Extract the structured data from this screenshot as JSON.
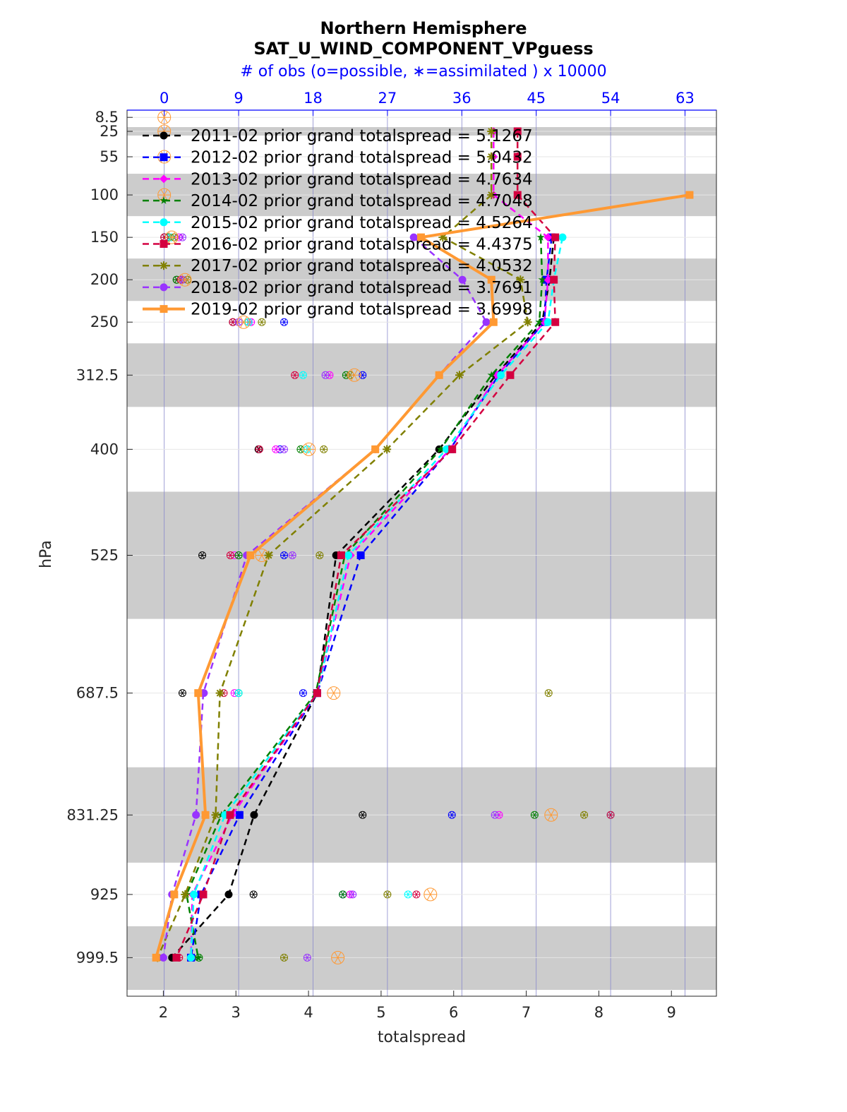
{
  "chart_data": {
    "type": "line",
    "title": "Northern Hemisphere",
    "subtitle": "SAT_U_WIND_COMPONENT_VPguess",
    "top_axis_label": "# of obs (o=possible, ∗=assimilated ) x 10000",
    "xlabel": "totalspread",
    "ylabel": "hPa",
    "xlim": [
      1.5,
      9.62
    ],
    "x_ticks": [
      2,
      3,
      4,
      5,
      6,
      7,
      8,
      9
    ],
    "top_ticks": [
      0,
      9,
      18,
      27,
      36,
      45,
      54,
      63
    ],
    "top_axis_range": [
      -4.5,
      66.8
    ],
    "levels": [
      8.5,
      25,
      55,
      100,
      150,
      200,
      250,
      312.5,
      400,
      525,
      687.5,
      831.25,
      925,
      999.5
    ],
    "level_labels": [
      "8.5",
      "25",
      "55",
      "100",
      "150",
      "200",
      "250",
      "312.5",
      "400",
      "525",
      "687.5",
      "831.25",
      "925",
      "999.5"
    ],
    "shaded_bands_hPa": [
      [
        20,
        30
      ],
      [
        75,
        125
      ],
      [
        175,
        225
      ],
      [
        275,
        350
      ],
      [
        450,
        600
      ],
      [
        775,
        887.5
      ],
      [
        962.5,
        1037.5
      ]
    ],
    "series": [
      {
        "name": "2011-02 prior grand totalspread = 5.1267",
        "color": "#000000",
        "marker": "dot",
        "lineStyle": "dashed",
        "values": [
          null,
          null,
          null,
          null,
          7.38,
          7.32,
          7.22,
          6.58,
          5.8,
          4.38,
          4.12,
          3.25,
          2.9,
          2.12
        ],
        "obs_possible": [
          null,
          null,
          null,
          null,
          0.0,
          1.5,
          8.3,
          null,
          11.4,
          4.6,
          2.2,
          24.0,
          10.8,
          1.0
        ],
        "obs_assimilated": [
          null,
          null,
          null,
          null,
          0.0,
          1.5,
          8.3,
          null,
          11.4,
          4.6,
          2.2,
          24.0,
          10.8,
          1.0
        ]
      },
      {
        "name": "2012-02 prior grand totalspread = 5.0432",
        "color": "#0000ff",
        "marker": "square",
        "lineStyle": "dashed",
        "values": [
          null,
          null,
          null,
          null,
          7.35,
          7.28,
          7.25,
          6.62,
          5.95,
          4.72,
          4.12,
          3.05,
          2.52,
          2.38
        ],
        "obs_possible": [
          null,
          null,
          null,
          null,
          0.5,
          2.0,
          14.5,
          24.0,
          14.0,
          14.5,
          16.8,
          34.8,
          21.6,
          3.4
        ],
        "obs_assimilated": [
          null,
          null,
          null,
          null,
          0.5,
          2.0,
          14.5,
          24.0,
          14.0,
          14.5,
          16.8,
          34.8,
          21.6,
          3.4
        ]
      },
      {
        "name": "2013-02 prior grand totalspread = 4.7634",
        "color": "#ff00ff",
        "marker": "diamond",
        "lineStyle": "dashed",
        "values": [
          null,
          6.55,
          6.55,
          6.55,
          7.3,
          7.3,
          7.25,
          6.6,
          5.95,
          4.58,
          4.12,
          2.95,
          2.4,
          2.38
        ],
        "obs_possible": [
          null,
          null,
          null,
          null,
          1.8,
          2.2,
          10.5,
          20.0,
          13.5,
          8.5,
          8.5,
          40.5,
          22.5,
          3.3
        ],
        "obs_assimilated": [
          null,
          null,
          null,
          null,
          1.8,
          2.2,
          10.5,
          20.0,
          13.5,
          8.5,
          8.5,
          40.5,
          22.5,
          3.3
        ]
      },
      {
        "name": "2014-02 prior grand totalspread = 4.7048",
        "color": "#008000",
        "marker": "star",
        "lineStyle": "dashed",
        "values": [
          null,
          null,
          null,
          null,
          7.2,
          7.22,
          7.18,
          6.52,
          5.82,
          4.5,
          4.1,
          2.8,
          2.32,
          2.48
        ],
        "obs_possible": [
          null,
          null,
          null,
          null,
          0.5,
          1.5,
          10.2,
          22.0,
          16.5,
          9.0,
          9.0,
          44.8,
          21.6,
          4.2
        ],
        "obs_assimilated": [
          null,
          null,
          null,
          null,
          0.5,
          1.5,
          10.2,
          22.0,
          16.5,
          9.0,
          9.0,
          44.8,
          21.6,
          4.2
        ]
      },
      {
        "name": "2015-02 prior grand totalspread = 4.5264",
        "color": "#00ffff",
        "marker": "circle",
        "lineStyle": "dashed",
        "values": [
          null,
          null,
          null,
          null,
          7.5,
          7.38,
          7.3,
          6.65,
          5.9,
          4.55,
          4.12,
          2.85,
          2.42,
          2.38
        ],
        "obs_possible": [
          null,
          null,
          null,
          null,
          0.8,
          2.2,
          10.2,
          16.8,
          17.3,
          10.3,
          9.0,
          54.0,
          29.5,
          3.2
        ],
        "obs_assimilated": [
          null,
          null,
          null,
          null,
          0.8,
          2.2,
          10.2,
          16.8,
          17.3,
          10.3,
          9.0,
          54.0,
          29.5,
          3.2
        ]
      },
      {
        "name": "2016-02 prior grand totalspread = 4.4375",
        "color": "#d40040",
        "marker": "square",
        "lineStyle": "dashed",
        "values": [
          null,
          6.88,
          6.88,
          6.88,
          7.4,
          7.38,
          7.4,
          6.78,
          5.98,
          4.45,
          4.12,
          2.92,
          2.55,
          2.18
        ],
        "obs_possible": [
          null,
          null,
          null,
          null,
          0.0,
          2.0,
          8.3,
          15.8,
          11.5,
          8.0,
          7.2,
          54.0,
          30.5,
          1.8
        ],
        "obs_assimilated": [
          null,
          null,
          null,
          null,
          0.0,
          2.0,
          8.3,
          15.8,
          11.5,
          8.0,
          7.2,
          54.0,
          30.5,
          1.8
        ]
      },
      {
        "name": "2017-02 prior grand totalspread = 4.0532",
        "color": "#808000",
        "marker": "asterisk",
        "lineStyle": "dashed",
        "values": [
          null,
          6.52,
          6.52,
          6.52,
          5.85,
          6.92,
          7.02,
          6.08,
          5.08,
          3.45,
          2.78,
          2.72,
          2.3,
          1.92
        ],
        "obs_possible": [
          null,
          null,
          null,
          null,
          1.2,
          2.8,
          11.8,
          22.5,
          19.3,
          18.8,
          46.5,
          50.8,
          27.0,
          14.5
        ],
        "obs_assimilated": [
          null,
          null,
          null,
          null,
          1.2,
          2.8,
          11.8,
          22.5,
          19.3,
          18.8,
          46.5,
          50.8,
          27.0,
          14.5
        ]
      },
      {
        "name": "2018-02 prior grand totalspread = 3.7691",
        "color": "#9933ff",
        "marker": "dot",
        "lineStyle": "dashed",
        "values": [
          null,
          null,
          null,
          null,
          5.45,
          6.12,
          6.45,
          5.8,
          4.92,
          3.15,
          2.55,
          2.45,
          2.12,
          2.0
        ],
        "obs_possible": [
          null,
          null,
          null,
          null,
          2.2,
          2.2,
          9.0,
          19.5,
          14.5,
          15.5,
          4.8,
          40.0,
          22.8,
          17.3
        ],
        "obs_assimilated": [
          null,
          null,
          null,
          null,
          2.2,
          2.2,
          9.0,
          19.5,
          14.5,
          15.5,
          4.8,
          40.0,
          22.8,
          17.3
        ]
      },
      {
        "name": "2019-02 prior grand totalspread = 3.6998",
        "color": "#ff9933",
        "marker": "square",
        "lineStyle": "solid",
        "values": [
          null,
          null,
          null,
          9.25,
          5.55,
          6.52,
          6.55,
          5.8,
          4.92,
          3.2,
          2.48,
          2.58,
          2.15,
          1.9
        ],
        "obs_possible": [
          0.0,
          0.0,
          0.0,
          0.0,
          0.9,
          2.5,
          9.6,
          23.0,
          17.5,
          11.8,
          20.5,
          46.8,
          32.2,
          21.0
        ],
        "obs_assimilated": [
          0.0,
          0.0,
          0.0,
          0.0,
          0.9,
          2.5,
          9.6,
          23.0,
          17.5,
          11.8,
          20.5,
          46.8,
          32.2,
          21.0
        ]
      }
    ]
  }
}
